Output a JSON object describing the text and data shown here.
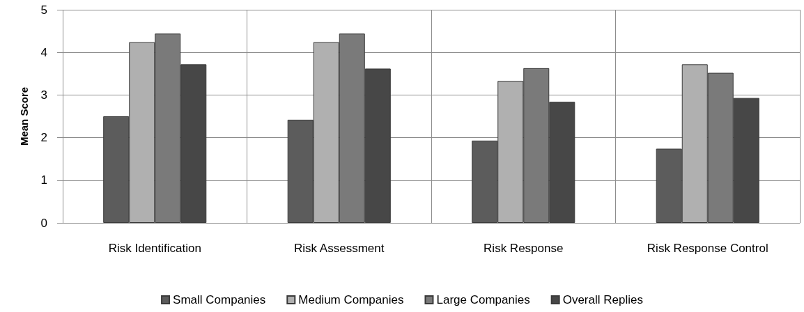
{
  "chart_data": {
    "type": "bar",
    "ylabel": "Mean Score",
    "categories": [
      "Risk Identification",
      "Risk Assessment",
      "Risk Response",
      "Risk Response Control"
    ],
    "series": [
      {
        "name": "Small Companies",
        "color": "#5c5c5c",
        "values": [
          2.5,
          2.42,
          1.93,
          1.74
        ]
      },
      {
        "name": "Medium Companies",
        "color": "#b0b0b0",
        "values": [
          4.24,
          4.24,
          3.33,
          3.72
        ]
      },
      {
        "name": "Large Companies",
        "color": "#7a7a7a",
        "values": [
          4.44,
          4.44,
          3.63,
          3.52
        ]
      },
      {
        "name": "Overall Replies",
        "color": "#474747",
        "values": [
          3.72,
          3.62,
          2.84,
          2.93
        ]
      }
    ],
    "ylim": [
      0,
      5
    ],
    "yticks": [
      0,
      1,
      2,
      3,
      4,
      5
    ],
    "grid": true,
    "legend": "bottom"
  }
}
